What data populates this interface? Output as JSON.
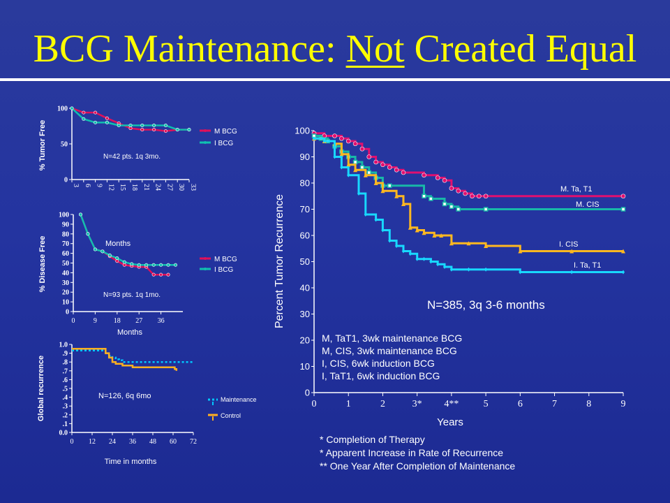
{
  "slide": {
    "title_pre": "BCG Maintenance: ",
    "title_underlined": "Not",
    "title_post": " Created Equal"
  },
  "colors": {
    "background": "#2434a0",
    "title": "#ffff00",
    "m_bcg": "#e0105a",
    "i_bcg": "#10c0b0",
    "m_ta": "#e01070",
    "m_cis": "#18b8a8",
    "i_cis": "#ffb820",
    "i_ta": "#18d8ff",
    "maintenance": "#00c8ff",
    "control": "#ffb020"
  },
  "chart_data": [
    {
      "id": "tumor-free",
      "type": "line",
      "ylabel": "% Tumor Free",
      "annotation": "N=42 pts. 1q 3mo.",
      "xticks": [
        "3",
        "6",
        "9",
        "12",
        "15",
        "18",
        "21",
        "24",
        "27",
        "30",
        "33"
      ],
      "yticks": [
        "0",
        "50",
        "100"
      ],
      "xlim": [
        3,
        33
      ],
      "ylim": [
        0,
        100
      ],
      "series": [
        {
          "name": "M BCG",
          "color": "#e0105a",
          "x": [
            3,
            6,
            9,
            12,
            15,
            18,
            21,
            24,
            27,
            30,
            33
          ],
          "y": [
            100,
            94,
            94,
            86,
            79,
            72,
            70,
            70,
            68,
            70,
            70
          ]
        },
        {
          "name": "I BCG",
          "color": "#10c0b0",
          "x": [
            3,
            6,
            9,
            12,
            15,
            18,
            21,
            24,
            27,
            30,
            33
          ],
          "y": [
            100,
            85,
            80,
            80,
            76,
            76,
            76,
            76,
            76,
            70,
            70
          ]
        }
      ]
    },
    {
      "id": "disease-free",
      "type": "line",
      "ylabel": "% Disease Free",
      "xlabel": "Months",
      "inner_label": "Months",
      "annotation": "N=93 pts. 1q 1mo.",
      "xticks": [
        "0",
        "9",
        "18",
        "27",
        "36"
      ],
      "yticks": [
        "0",
        "10",
        "20",
        "30",
        "40",
        "50",
        "60",
        "70",
        "80",
        "90",
        "100"
      ],
      "xlim": [
        0,
        45
      ],
      "ylim": [
        0,
        100
      ],
      "series": [
        {
          "name": "M BCG",
          "color": "#e0105a",
          "x": [
            3,
            6,
            9,
            12,
            15,
            18,
            21,
            24,
            27,
            30,
            33,
            36,
            39
          ],
          "y": [
            100,
            80,
            64,
            62,
            57,
            52,
            48,
            47,
            46,
            46,
            38,
            38,
            38
          ]
        },
        {
          "name": "I BCG",
          "color": "#10c0b0",
          "x": [
            3,
            6,
            9,
            12,
            15,
            18,
            21,
            24,
            27,
            30,
            33,
            36,
            39,
            42
          ],
          "y": [
            100,
            80,
            64,
            62,
            58,
            55,
            51,
            49,
            48,
            48,
            48,
            48,
            48,
            48
          ]
        }
      ]
    },
    {
      "id": "global-recurrence",
      "type": "line",
      "ylabel": "Global recurrence",
      "xlabel": "Time in months",
      "annotation": "N=126, 6q 6mo",
      "xticks": [
        "0",
        "12",
        "24",
        "36",
        "48",
        "60",
        "72"
      ],
      "yticks": [
        "0.0",
        ".1",
        ".2",
        ".3",
        ".4",
        ".5",
        ".6",
        ".7",
        ".8",
        ".9",
        "1.0"
      ],
      "xlim": [
        0,
        72
      ],
      "ylim": [
        0,
        1
      ],
      "series": [
        {
          "name": "Maintenance",
          "color": "#00c8ff",
          "x": [
            0,
            6,
            12,
            18,
            20,
            22,
            24,
            26,
            28,
            30,
            36,
            48,
            60,
            66,
            72
          ],
          "y": [
            0.93,
            0.93,
            0.93,
            0.93,
            0.9,
            0.87,
            0.85,
            0.83,
            0.82,
            0.8,
            0.8,
            0.8,
            0.8,
            0.8,
            0.8
          ]
        },
        {
          "name": "Control",
          "color": "#ffb020",
          "x": [
            0,
            12,
            18,
            20,
            22,
            24,
            26,
            30,
            36,
            48,
            60,
            61,
            62
          ],
          "y": [
            0.95,
            0.95,
            0.95,
            0.9,
            0.85,
            0.8,
            0.78,
            0.76,
            0.74,
            0.74,
            0.74,
            0.72,
            0.7
          ]
        }
      ]
    },
    {
      "id": "main-recurrence",
      "type": "line",
      "ylabel": "Percent Tumor Recurrence",
      "xlabel": "Years",
      "annotation": "N=385, 3q 3-6 months",
      "xticks": [
        "0",
        "1",
        "2",
        "3*",
        "4**",
        "5",
        "6",
        "7",
        "8",
        "9"
      ],
      "yticks": [
        "0",
        "10",
        "20",
        "30",
        "40",
        "50",
        "60",
        "70",
        "80",
        "90",
        "100"
      ],
      "xlim": [
        0,
        9
      ],
      "ylim": [
        0,
        100
      ],
      "legend_text": [
        "M, TaT1, 3wk maintenance BCG",
        "M, CIS, 3wk maintenance BCG",
        "I, CIS, 6wk induction BCG",
        "I, TaT1, 6wk induction BCG"
      ],
      "series": [
        {
          "name": "M. Ta, T1",
          "color": "#e01070",
          "x": [
            0,
            0.3,
            0.6,
            0.8,
            1.0,
            1.2,
            1.4,
            1.6,
            1.8,
            2.0,
            2.2,
            2.4,
            2.6,
            3.2,
            3.6,
            3.8,
            4.0,
            4.2,
            4.4,
            4.6,
            4.8,
            5.0,
            9.0
          ],
          "y": [
            99,
            98,
            98,
            97,
            96,
            95,
            93,
            90,
            88,
            87,
            86,
            85,
            84,
            83,
            82,
            81,
            78,
            77,
            76,
            75,
            75,
            75,
            75
          ]
        },
        {
          "name": "M. CIS",
          "color": "#18b8a8",
          "x": [
            0,
            0.2,
            0.4,
            0.6,
            0.8,
            1.0,
            1.2,
            1.4,
            1.6,
            1.8,
            2.0,
            2.2,
            3.2,
            3.4,
            3.8,
            4.0,
            4.2,
            5.0,
            9.0
          ],
          "y": [
            98,
            97,
            96,
            94,
            92,
            90,
            88,
            86,
            84,
            82,
            79,
            79,
            75,
            74,
            72,
            71,
            70,
            70,
            70
          ]
        },
        {
          "name": "I. CIS",
          "color": "#ffb820",
          "x": [
            0,
            0.3,
            0.6,
            0.8,
            1.0,
            1.2,
            1.5,
            1.8,
            2.0,
            2.4,
            2.6,
            2.8,
            3.0,
            3.2,
            3.5,
            3.7,
            4.0,
            4.5,
            5.0,
            6.0,
            7.5,
            9.0
          ],
          "y": [
            97,
            96,
            95,
            91,
            87,
            85,
            83,
            80,
            77,
            75,
            72,
            63,
            62,
            61,
            60,
            60,
            57,
            57,
            56,
            54,
            54,
            54
          ]
        },
        {
          "name": "I. Ta, T1",
          "color": "#18d8ff",
          "x": [
            0,
            0.3,
            0.6,
            0.8,
            1.0,
            1.3,
            1.5,
            1.8,
            2.0,
            2.2,
            2.4,
            2.6,
            2.8,
            3.0,
            3.2,
            3.4,
            3.6,
            3.8,
            4.0,
            4.5,
            5.0,
            6.0,
            7.5,
            9.0
          ],
          "y": [
            97,
            96,
            90,
            86,
            83,
            76,
            68,
            66,
            62,
            58,
            56,
            54,
            53,
            51,
            51,
            50,
            49,
            48,
            47,
            47,
            47,
            46,
            46,
            46
          ]
        }
      ]
    }
  ],
  "legends": {
    "tumor_free": [
      "M BCG",
      "I BCG"
    ],
    "disease_free": [
      "M BCG",
      "I BCG"
    ],
    "global": [
      "Maintenance",
      "Control"
    ]
  },
  "footnotes": [
    "* Completion of Therapy",
    "* Apparent Increase in Rate of Recurrence",
    "** One Year After Completion of Maintenance"
  ]
}
